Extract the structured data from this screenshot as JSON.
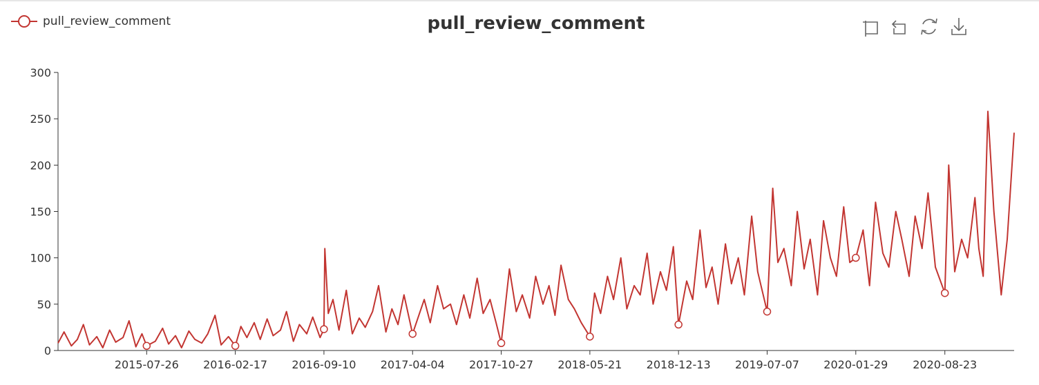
{
  "chart_data": {
    "type": "line",
    "title": "pull_review_comment",
    "legend": {
      "position": "top-left",
      "entries": [
        "pull_review_comment"
      ]
    },
    "toolbox": [
      "zoom-icon",
      "zoom-reset-icon",
      "restore-icon",
      "save-image-icon"
    ],
    "colors": {
      "series": "#c23531",
      "axis": "#333333"
    },
    "xlabel": "",
    "ylabel": "",
    "ylim": [
      0,
      300
    ],
    "y_ticks": [
      0,
      50,
      100,
      150,
      200,
      250,
      300
    ],
    "xlim": [
      "2015-01-01",
      "2021-01-31"
    ],
    "x_ticks": [
      "2015-07-26",
      "2016-02-17",
      "2016-09-10",
      "2017-04-04",
      "2017-10-27",
      "2018-05-21",
      "2018-12-13",
      "2019-07-07",
      "2020-01-29",
      "2020-08-23"
    ],
    "grid": false,
    "series": [
      {
        "name": "pull_review_comment",
        "x": [
          "2015-01-01",
          "2015-01-15",
          "2015-02-01",
          "2015-02-15",
          "2015-03-01",
          "2015-03-15",
          "2015-04-01",
          "2015-04-15",
          "2015-05-01",
          "2015-05-15",
          "2015-06-01",
          "2015-06-15",
          "2015-07-01",
          "2015-07-15",
          "2015-07-26",
          "2015-08-15",
          "2015-09-01",
          "2015-09-15",
          "2015-10-01",
          "2015-10-15",
          "2015-11-01",
          "2015-11-15",
          "2015-12-01",
          "2015-12-15",
          "2016-01-01",
          "2016-01-15",
          "2016-02-01",
          "2016-02-17",
          "2016-03-01",
          "2016-03-15",
          "2016-04-01",
          "2016-04-15",
          "2016-05-01",
          "2016-05-15",
          "2016-06-01",
          "2016-06-15",
          "2016-07-01",
          "2016-07-15",
          "2016-08-01",
          "2016-08-15",
          "2016-09-01",
          "2016-09-10",
          "2016-09-12",
          "2016-09-20",
          "2016-10-01",
          "2016-10-15",
          "2016-11-01",
          "2016-11-15",
          "2016-12-01",
          "2016-12-15",
          "2017-01-01",
          "2017-01-15",
          "2017-02-01",
          "2017-02-15",
          "2017-03-01",
          "2017-03-15",
          "2017-04-04",
          "2017-04-20",
          "2017-05-01",
          "2017-05-15",
          "2017-06-01",
          "2017-06-15",
          "2017-07-01",
          "2017-07-15",
          "2017-08-01",
          "2017-08-15",
          "2017-09-01",
          "2017-09-15",
          "2017-10-01",
          "2017-10-15",
          "2017-10-27",
          "2017-11-15",
          "2017-12-01",
          "2017-12-15",
          "2018-01-01",
          "2018-01-15",
          "2018-02-01",
          "2018-02-15",
          "2018-03-01",
          "2018-03-15",
          "2018-04-01",
          "2018-04-15",
          "2018-05-01",
          "2018-05-21",
          "2018-06-01",
          "2018-06-15",
          "2018-07-01",
          "2018-07-15",
          "2018-08-01",
          "2018-08-15",
          "2018-09-01",
          "2018-09-15",
          "2018-10-01",
          "2018-10-15",
          "2018-11-01",
          "2018-11-15",
          "2018-12-01",
          "2018-12-13",
          "2019-01-01",
          "2019-01-15",
          "2019-02-01",
          "2019-02-15",
          "2019-03-01",
          "2019-03-15",
          "2019-04-01",
          "2019-04-15",
          "2019-05-01",
          "2019-05-15",
          "2019-06-01",
          "2019-06-15",
          "2019-07-07",
          "2019-07-20",
          "2019-08-01",
          "2019-08-15",
          "2019-09-01",
          "2019-09-15",
          "2019-10-01",
          "2019-10-15",
          "2019-11-01",
          "2019-11-15",
          "2019-12-01",
          "2019-12-15",
          "2020-01-01",
          "2020-01-15",
          "2020-01-29",
          "2020-02-15",
          "2020-03-01",
          "2020-03-15",
          "2020-04-01",
          "2020-04-15",
          "2020-05-01",
          "2020-05-15",
          "2020-06-01",
          "2020-06-15",
          "2020-07-01",
          "2020-07-15",
          "2020-08-01",
          "2020-08-23",
          "2020-09-01",
          "2020-09-15",
          "2020-10-01",
          "2020-10-15",
          "2020-11-01",
          "2020-11-10",
          "2020-11-20",
          "2020-12-01",
          "2020-12-15",
          "2021-01-01",
          "2021-01-15",
          "2021-01-31"
        ],
        "values": [
          8,
          20,
          5,
          12,
          28,
          6,
          15,
          3,
          22,
          9,
          14,
          32,
          4,
          18,
          5,
          10,
          24,
          7,
          16,
          3,
          21,
          12,
          8,
          18,
          38,
          6,
          15,
          5,
          26,
          14,
          30,
          12,
          34,
          16,
          22,
          42,
          10,
          28,
          18,
          36,
          14,
          23,
          110,
          40,
          55,
          22,
          65,
          18,
          35,
          25,
          42,
          70,
          20,
          45,
          28,
          60,
          18,
          40,
          55,
          30,
          70,
          45,
          50,
          28,
          60,
          35,
          78,
          40,
          55,
          30,
          8,
          88,
          42,
          60,
          35,
          80,
          50,
          70,
          38,
          92,
          55,
          45,
          30,
          15,
          62,
          40,
          80,
          55,
          100,
          45,
          70,
          60,
          105,
          50,
          85,
          65,
          112,
          28,
          75,
          55,
          130,
          68,
          90,
          50,
          115,
          72,
          100,
          60,
          145,
          85,
          42,
          175,
          95,
          110,
          70,
          150,
          88,
          120,
          60,
          140,
          100,
          80,
          155,
          95,
          100,
          130,
          70,
          160,
          105,
          90,
          150,
          120,
          80,
          145,
          110,
          170,
          90,
          62,
          200,
          85,
          120,
          100,
          165,
          110,
          80,
          258,
          150,
          60,
          120,
          235
        ]
      }
    ],
    "markers": [
      {
        "x": "2015-07-26",
        "y": 5
      },
      {
        "x": "2016-02-17",
        "y": 5
      },
      {
        "x": "2016-09-10",
        "y": 23
      },
      {
        "x": "2017-04-04",
        "y": 18
      },
      {
        "x": "2017-10-27",
        "y": 8
      },
      {
        "x": "2018-05-21",
        "y": 15
      },
      {
        "x": "2018-12-13",
        "y": 28
      },
      {
        "x": "2019-07-07",
        "y": 42
      },
      {
        "x": "2020-01-29",
        "y": 100
      },
      {
        "x": "2020-08-23",
        "y": 62
      }
    ]
  }
}
